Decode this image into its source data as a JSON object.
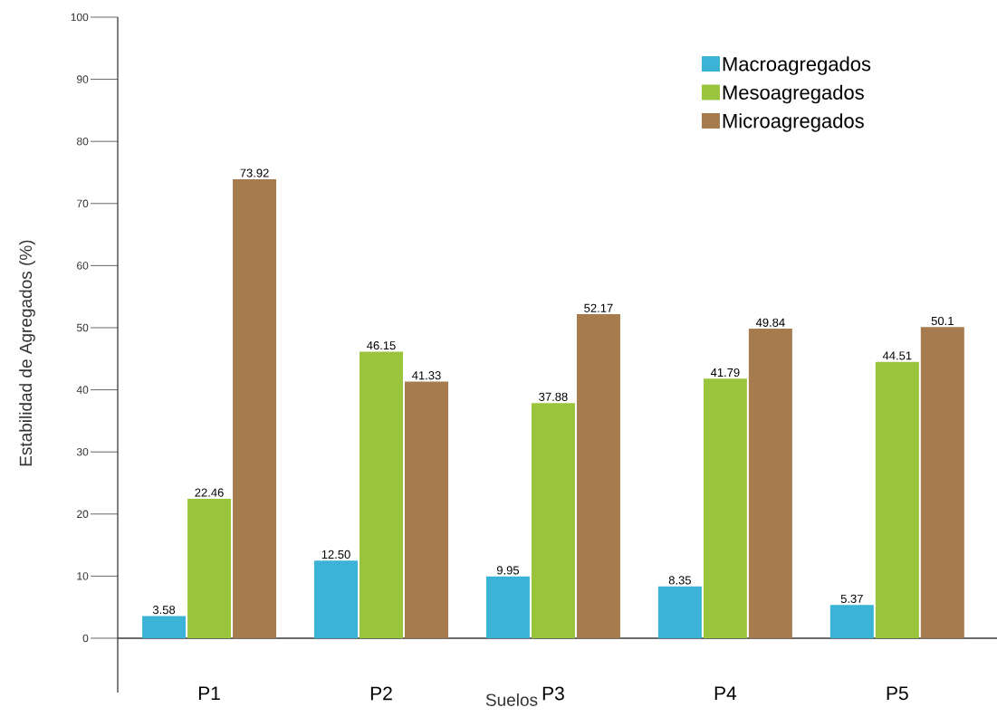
{
  "chart_data": {
    "type": "bar",
    "xlabel": "Suelos",
    "ylabel": "Estabilidad de Agregados (%)",
    "categories": [
      "P1",
      "P2",
      "P3",
      "P4",
      "P5"
    ],
    "series": [
      {
        "name": "Macroagregados",
        "color": "#3bb3d6",
        "values": [
          3.58,
          12.5,
          9.95,
          8.35,
          5.37
        ],
        "value_labels": [
          "3.58",
          "12.50",
          "9.95",
          "8.35",
          "5.37"
        ]
      },
      {
        "name": "Mesoagregados",
        "color": "#9bc43d",
        "values": [
          22.46,
          46.15,
          37.88,
          41.79,
          44.51
        ],
        "value_labels": [
          "22.46",
          "46.15",
          "37.88",
          "41.79",
          "44.51"
        ]
      },
      {
        "name": "Microagregados",
        "color": "#a67c4f",
        "values": [
          73.92,
          41.33,
          52.17,
          49.84,
          50.1
        ],
        "value_labels": [
          "73.92",
          "41.33",
          "52.17",
          "49.84",
          "50.1"
        ]
      }
    ],
    "ylim": [
      0,
      100
    ],
    "yticks": [
      0,
      10,
      20,
      30,
      40,
      50,
      60,
      70,
      80,
      90,
      100
    ],
    "legend": "top right"
  }
}
